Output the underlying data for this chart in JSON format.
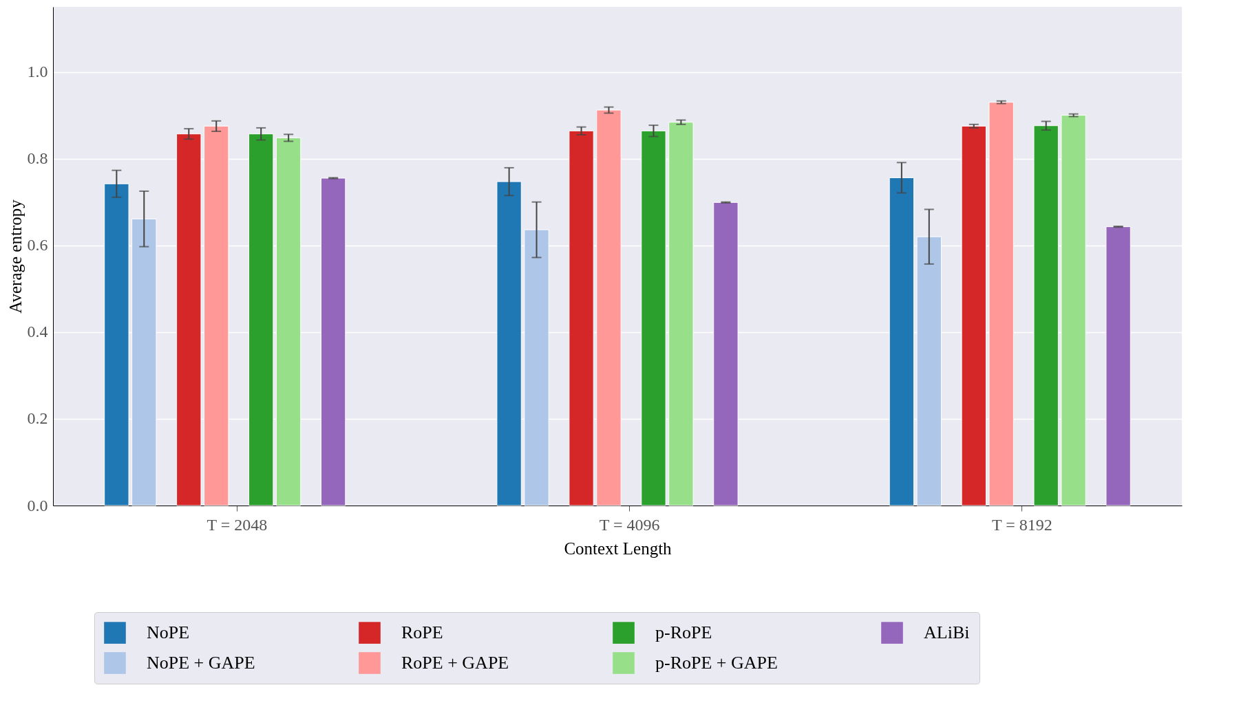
{
  "chart_data": {
    "type": "bar",
    "xlabel": "Context Length",
    "ylabel": "Average entropy",
    "categories": [
      "T = 2048",
      "T = 4096",
      "T = 8192"
    ],
    "series": [
      {
        "name": "NoPE",
        "color": "#1f77b4",
        "values": [
          0.742,
          0.747,
          0.756
        ],
        "errors": [
          0.031,
          0.032,
          0.035
        ]
      },
      {
        "name": "NoPE + GAPE",
        "color": "#aec7e8",
        "values": [
          0.661,
          0.636,
          0.62
        ],
        "errors": [
          0.064,
          0.064,
          0.063
        ]
      },
      {
        "name": "RoPE",
        "color": "#d62728",
        "values": [
          0.857,
          0.864,
          0.875
        ],
        "errors": [
          0.012,
          0.009,
          0.004
        ]
      },
      {
        "name": "RoPE + GAPE",
        "color": "#ff9896",
        "values": [
          0.875,
          0.912,
          0.93
        ],
        "errors": [
          0.012,
          0.007,
          0.003
        ]
      },
      {
        "name": "p-RoPE",
        "color": "#2ca02c",
        "values": [
          0.857,
          0.864,
          0.876
        ],
        "errors": [
          0.014,
          0.013,
          0.01
        ]
      },
      {
        "name": "p-RoPE + GAPE",
        "color": "#98df8a",
        "values": [
          0.848,
          0.884,
          0.9
        ],
        "errors": [
          0.008,
          0.005,
          0.003
        ]
      },
      {
        "name": "ALiBi",
        "color": "#9467bd",
        "values": [
          0.755,
          0.699,
          0.643
        ],
        "errors": [
          0.001,
          0.001,
          0.001
        ]
      }
    ],
    "ylim": [
      0,
      1.15
    ],
    "yticks": [
      {
        "value": 0,
        "label": "0.0"
      },
      {
        "value": 0.2,
        "label": "0.2"
      },
      {
        "value": 0.4,
        "label": "0.4"
      },
      {
        "value": 0.6,
        "label": "0.6"
      },
      {
        "value": 0.8,
        "label": "0.8"
      },
      {
        "value": 1,
        "label": "1.0"
      }
    ],
    "grid": "y",
    "legend": "bottom"
  }
}
